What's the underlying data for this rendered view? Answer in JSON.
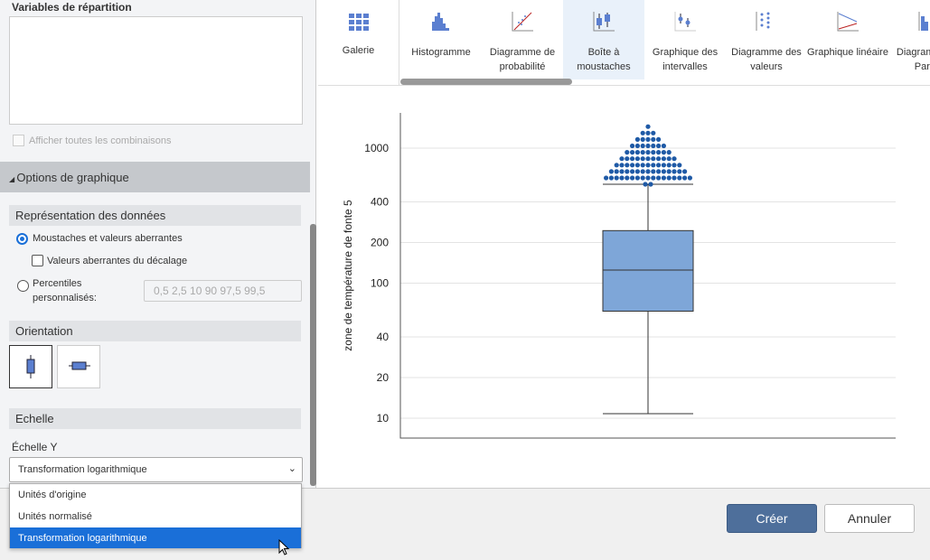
{
  "left": {
    "split_vars_label": "Variables de répartition",
    "show_all_combos": "Afficher toutes les combinaisons",
    "graph_options": "Options de graphique",
    "data_repr": "Représentation des données",
    "opt_whiskers": "Moustaches et valeurs aberrantes",
    "opt_offset": "Valeurs aberrantes du décalage",
    "opt_percentiles": "Percentiles personnalisés:",
    "percentiles_value": "0,5 2,5 10 90 97,5 99,5",
    "orientation": "Orientation",
    "scale": "Echelle",
    "y_scale_label": "Échelle Y",
    "y_scale_selected": "Transformation logarithmique",
    "y_scale_options": [
      "Unités d'origine",
      "Unités normalisé",
      "Transformation logarithmique"
    ]
  },
  "toolbar": {
    "gallery": "Galerie",
    "tools": [
      "Histogramme",
      "Diagramme de probabilité",
      "Boîte à moustaches",
      "Graphique des intervalles",
      "Diagramme des valeurs",
      "Graphique linéaire",
      "Diagramme de Pareto"
    ],
    "active": "Boîte à moustaches",
    "accent": "#4a76c9"
  },
  "chart_data": {
    "type": "boxplot",
    "ylabel": "zone de température de fonte 5",
    "yscale": "log",
    "yticks": [
      10,
      20,
      40,
      100,
      200,
      400,
      1000
    ],
    "ytick_labels": [
      "10",
      "20",
      "40",
      "100",
      "200",
      "400",
      "1000"
    ],
    "ylim": [
      7,
      1900
    ],
    "grid": true,
    "box": {
      "whisker_low": 10.8,
      "q1": 62,
      "median": 125,
      "q3": 245,
      "whisker_high": 540
    },
    "outliers_range": [
      560,
      1400
    ],
    "box_color": "#7ea6d8",
    "outlier_color": "#1f5aa6"
  },
  "footer": {
    "create": "Créer",
    "cancel": "Annuler"
  }
}
